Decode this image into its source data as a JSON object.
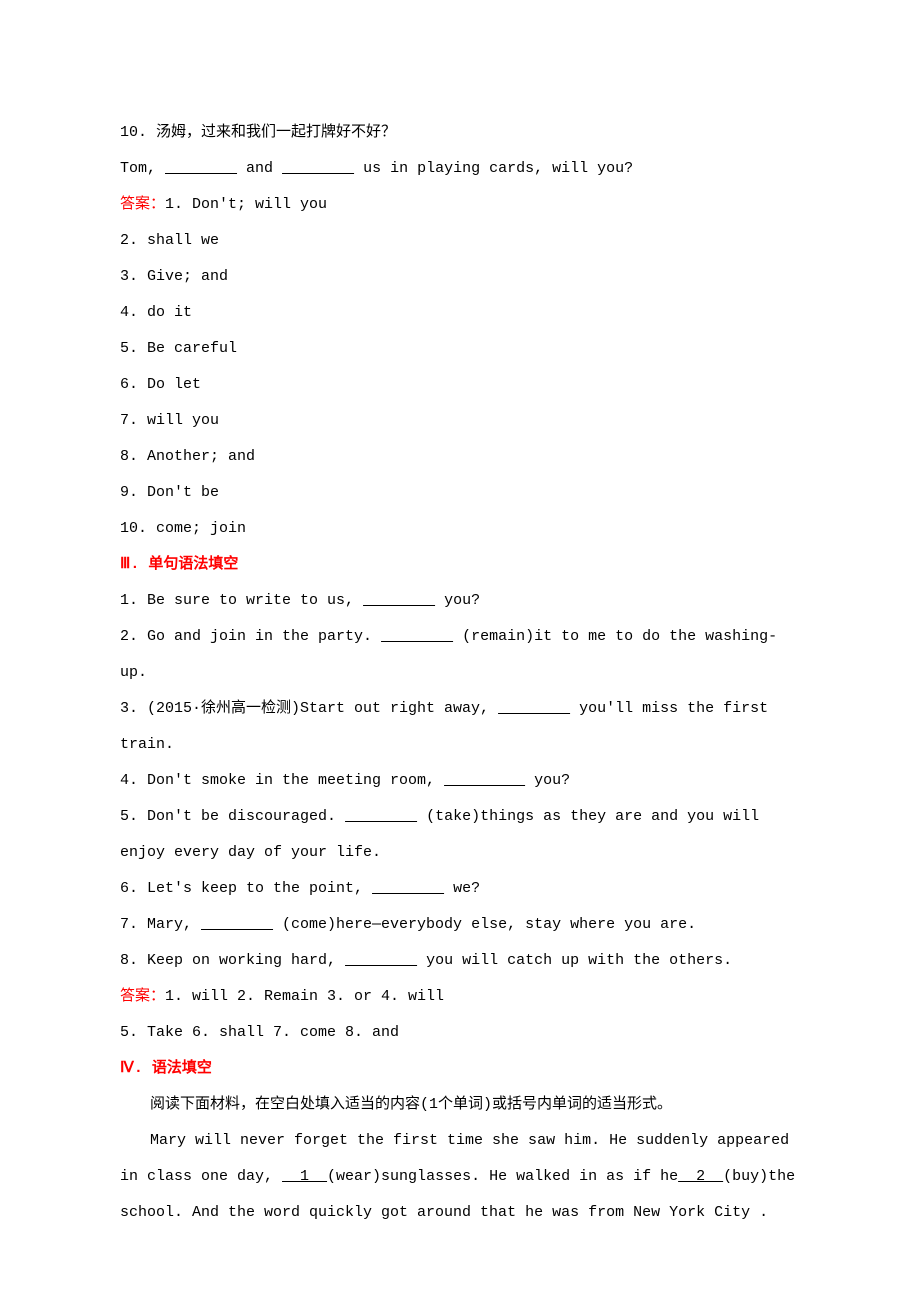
{
  "q10": {
    "question_cn": "10. 汤姆，过来和我们一起打牌好不好？",
    "question_en_prefix": "Tom, ",
    "blank1": "        ",
    "and": " and ",
    "blank2": "        ",
    "question_en_suffix": " us in playing cards, will you?"
  },
  "answer_label": "答案：",
  "answers_q": [
    "1. Don't;  will you",
    "2. shall we",
    "3. Give; and",
    "4. do it",
    "5. Be careful",
    "6. Do let",
    "7. will you",
    "8. Another; and",
    "9. Don't be",
    "10. come; join"
  ],
  "section3": {
    "header": "Ⅲ. 单句语法填空",
    "items": [
      {
        "prefix": "1. Be sure to write to us, ",
        "blank": "        ",
        "suffix": " you?"
      },
      {
        "prefix": "2. Go and join in the party. ",
        "blank": "        ",
        "suffix": " (remain)it to me to do the washing-up."
      },
      {
        "prefix": "3. (2015·徐州高一检测)Start out right away, ",
        "blank": "        ",
        "suffix": " you'll miss the first train."
      },
      {
        "prefix": "4. Don't smoke in the meeting room, ",
        "blank": "         ",
        "suffix": " you?"
      },
      {
        "prefix": "5. Don't be discouraged. ",
        "blank": "        ",
        "suffix": " (take)things as they are and you will enjoy every day of your life."
      },
      {
        "prefix": "6. Let's keep to the point, ",
        "blank": "        ",
        "suffix": " we?"
      },
      {
        "prefix": "7. Mary, ",
        "blank": "        ",
        "suffix": " (come)here—everybody else, stay where you are."
      },
      {
        "prefix": "8. Keep on working hard, ",
        "blank": "        ",
        "suffix": " you will catch up with the others."
      }
    ],
    "answer_line1": "1. will  2. Remain   3. or   4. will",
    "answer_line2": "5. Take  6. shall  7. come  8. and"
  },
  "section4": {
    "header": "Ⅳ. 语法填空",
    "instruction": "阅读下面材料，在空白处填入适当的内容(1个单词)或括号内单词的适当形式。",
    "paragraph_prefix": "Mary will never forget the first time she saw him. He suddenly appeared in class one day, ",
    "blank1_label": "  1  ",
    "mid1": "(wear)sunglasses. He walked in as if he",
    "blank2_label": "  2  ",
    "mid2": "(buy)the school. And the word quickly got around that he was from New York City ."
  }
}
